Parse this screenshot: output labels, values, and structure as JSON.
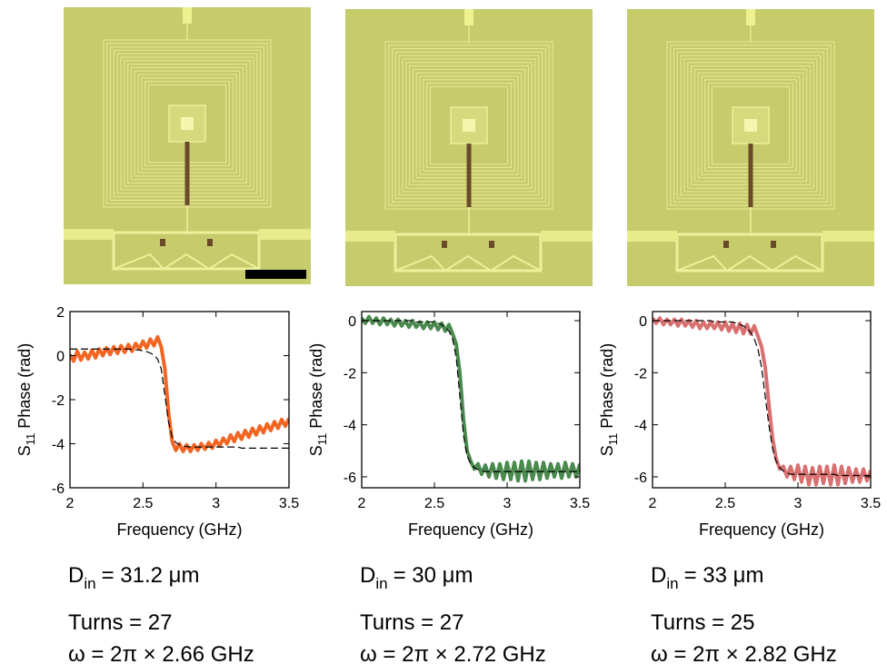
{
  "chart_data": [
    {
      "type": "line",
      "xlabel": "Frequency (GHz)",
      "ylabel": [
        "S",
        "11",
        "Phase (rad)"
      ],
      "xlim": [
        2,
        3.5
      ],
      "ylim": [
        -6,
        2
      ],
      "xticks": [
        2,
        2.5,
        3,
        3.5
      ],
      "yticks": [
        2,
        0,
        -2,
        -4,
        -6
      ],
      "annotations": [
        [
          "D",
          "in",
          "= 31.2 μm"
        ],
        "Turns = 27",
        "ω = 2π × 2.66 GHz"
      ],
      "x": [
        2,
        2.025,
        2.05,
        2.075,
        2.1,
        2.125,
        2.15,
        2.175,
        2.2,
        2.225,
        2.25,
        2.275,
        2.3,
        2.325,
        2.35,
        2.375,
        2.4,
        2.425,
        2.45,
        2.475,
        2.5,
        2.525,
        2.55,
        2.575,
        2.6,
        2.625,
        2.65,
        2.675,
        2.7,
        2.725,
        2.75,
        2.775,
        2.8,
        2.825,
        2.85,
        2.875,
        2.9,
        2.925,
        2.95,
        2.975,
        3,
        3.025,
        3.05,
        3.075,
        3.1,
        3.125,
        3.15,
        3.175,
        3.2,
        3.225,
        3.25,
        3.275,
        3.3,
        3.325,
        3.35,
        3.375,
        3.4,
        3.425,
        3.45,
        3.475,
        3.5
      ],
      "series": [
        {
          "color": "#f26522",
          "style": "solid",
          "values": [
            0.05,
            -0.25,
            0.2,
            -0.2,
            0.15,
            -0.15,
            0.25,
            -0.1,
            0.3,
            0,
            0.35,
            0.05,
            0.4,
            0.1,
            0.45,
            0.15,
            0.5,
            0.2,
            0.55,
            0.3,
            0.65,
            0.35,
            0.75,
            0.45,
            0.85,
            0.4,
            -0.6,
            -2.6,
            -3.9,
            -4.3,
            -4,
            -4.35,
            -4.05,
            -4.35,
            -4.05,
            -4.3,
            -4,
            -4.25,
            -3.95,
            -4.2,
            -3.85,
            -4.1,
            -3.75,
            -4,
            -3.6,
            -3.9,
            -3.5,
            -3.8,
            -3.4,
            -3.7,
            -3.3,
            -3.6,
            -3.2,
            -3.5,
            -3.1,
            -3.4,
            -3,
            -3.3,
            -2.9,
            -3.2,
            -2.85
          ]
        },
        {
          "color": "#000000",
          "style": "dashed",
          "values": [
            0.3,
            0.3,
            0.3,
            0.3,
            0.3,
            0.3,
            0.3,
            0.3,
            0.3,
            0.3,
            0.3,
            0.3,
            0.3,
            0.3,
            0.3,
            0.3,
            0.3,
            0.28,
            0.27,
            0.25,
            0.22,
            0.18,
            0.12,
            0.02,
            -0.15,
            -0.6,
            -1.8,
            -3,
            -3.7,
            -3.95,
            -4.05,
            -4.1,
            -4.13,
            -4.15,
            -4.15,
            -4.15,
            -4.15,
            -4.15,
            -4.15,
            -4.15,
            -4.15,
            -4.15,
            -4.15,
            -4.15,
            -4.15,
            -4.15,
            -4.15,
            -4.2,
            -4.2,
            -4.2,
            -4.2,
            -4.2,
            -4.2,
            -4.2,
            -4.2,
            -4.2,
            -4.2,
            -4.2,
            -4.2,
            -4.2,
            -4.2
          ]
        }
      ]
    },
    {
      "type": "line",
      "xlabel": "Frequency (GHz)",
      "ylabel": [
        "S",
        "11",
        "Phase (rad)"
      ],
      "xlim": [
        2,
        3.5
      ],
      "ylim": [
        -6.42,
        0.35
      ],
      "xticks": [
        2,
        2.5,
        3,
        3.5
      ],
      "yticks": [
        0,
        -2,
        -4,
        -6
      ],
      "annotations": [
        [
          "D",
          "in",
          "= 30 μm"
        ],
        "Turns = 27",
        "ω = 2π × 2.72 GHz"
      ],
      "x": [
        2,
        2.025,
        2.05,
        2.075,
        2.1,
        2.125,
        2.15,
        2.175,
        2.2,
        2.225,
        2.25,
        2.275,
        2.3,
        2.325,
        2.35,
        2.375,
        2.4,
        2.425,
        2.45,
        2.475,
        2.5,
        2.525,
        2.55,
        2.575,
        2.6,
        2.625,
        2.65,
        2.675,
        2.7,
        2.725,
        2.75,
        2.775,
        2.8,
        2.825,
        2.85,
        2.875,
        2.9,
        2.925,
        2.95,
        2.975,
        3,
        3.025,
        3.05,
        3.075,
        3.1,
        3.125,
        3.15,
        3.175,
        3.2,
        3.225,
        3.25,
        3.275,
        3.3,
        3.325,
        3.35,
        3.375,
        3.4,
        3.425,
        3.45,
        3.475,
        3.5
      ],
      "series": [
        {
          "color": "#4a8a4e",
          "style": "solid",
          "values": [
            0.1,
            -0.1,
            0.15,
            -0.1,
            0.1,
            -0.15,
            0.1,
            -0.15,
            0.05,
            -0.2,
            0.05,
            -0.2,
            0,
            -0.25,
            0,
            -0.25,
            -0.05,
            -0.3,
            -0.05,
            -0.3,
            -0.05,
            -0.35,
            -0.1,
            -0.4,
            -0.15,
            -0.5,
            -0.9,
            -2,
            -3.8,
            -5,
            -5.4,
            -5.7,
            -5.5,
            -5.9,
            -5.55,
            -6,
            -5.5,
            -6.05,
            -5.5,
            -6.1,
            -5.45,
            -6.1,
            -5.45,
            -6.15,
            -5.4,
            -6.15,
            -5.4,
            -6.1,
            -5.45,
            -6.1,
            -5.45,
            -6.05,
            -5.5,
            -6,
            -5.5,
            -6.05,
            -5.45,
            -6,
            -5.5,
            -6,
            -5.5
          ]
        },
        {
          "color": "#000000",
          "style": "dashed",
          "values": [
            0,
            0,
            0,
            0,
            0,
            0,
            0,
            0,
            0,
            0,
            0,
            0,
            0,
            0,
            0,
            -0.05,
            -0.05,
            -0.05,
            -0.05,
            -0.05,
            -0.05,
            -0.1,
            -0.15,
            -0.25,
            -0.4,
            -0.7,
            -1.4,
            -2.9,
            -4.4,
            -5.2,
            -5.5,
            -5.65,
            -5.72,
            -5.76,
            -5.8,
            -5.8,
            -5.8,
            -5.8,
            -5.8,
            -5.8,
            -5.8,
            -5.8,
            -5.8,
            -5.8,
            -5.8,
            -5.8,
            -5.8,
            -5.8,
            -5.8,
            -5.8,
            -5.8,
            -5.8,
            -5.8,
            -5.8,
            -5.8,
            -5.8,
            -5.8,
            -5.8,
            -5.8,
            -5.8,
            -5.8
          ]
        }
      ]
    },
    {
      "type": "line",
      "xlabel": "Frequency (GHz)",
      "ylabel": [
        "S",
        "11",
        "Phase (rad)"
      ],
      "xlim": [
        2,
        3.5
      ],
      "ylim": [
        -6.42,
        0.35
      ],
      "xticks": [
        2,
        2.5,
        3,
        3.5
      ],
      "yticks": [
        0,
        -2,
        -4,
        -6
      ],
      "annotations": [
        [
          "D",
          "in",
          "= 33 μm"
        ],
        "Turns = 25",
        "ω = 2π × 2.82 GHz"
      ],
      "x": [
        2,
        2.025,
        2.05,
        2.075,
        2.1,
        2.125,
        2.15,
        2.175,
        2.2,
        2.225,
        2.25,
        2.275,
        2.3,
        2.325,
        2.35,
        2.375,
        2.4,
        2.425,
        2.45,
        2.475,
        2.5,
        2.525,
        2.55,
        2.575,
        2.6,
        2.625,
        2.65,
        2.675,
        2.7,
        2.725,
        2.75,
        2.775,
        2.8,
        2.825,
        2.85,
        2.875,
        2.9,
        2.925,
        2.95,
        2.975,
        3,
        3.025,
        3.05,
        3.075,
        3.1,
        3.125,
        3.15,
        3.175,
        3.2,
        3.225,
        3.25,
        3.275,
        3.3,
        3.325,
        3.35,
        3.375,
        3.4,
        3.425,
        3.45,
        3.475,
        3.5
      ],
      "series": [
        {
          "color": "#d97070",
          "style": "solid",
          "values": [
            0.1,
            -0.1,
            0.1,
            -0.15,
            0.05,
            -0.15,
            0.05,
            -0.2,
            0.05,
            -0.2,
            0,
            -0.25,
            0,
            -0.3,
            -0.05,
            -0.3,
            -0.05,
            -0.3,
            -0.05,
            -0.35,
            -0.05,
            -0.4,
            -0.1,
            -0.45,
            -0.1,
            -0.5,
            -0.15,
            -0.5,
            -0.2,
            -0.6,
            -1,
            -1.8,
            -3.2,
            -4.5,
            -5.3,
            -5.7,
            -5.6,
            -6,
            -5.6,
            -6.1,
            -5.55,
            -6.2,
            -5.6,
            -6.3,
            -5.65,
            -6.3,
            -5.6,
            -6.25,
            -5.6,
            -6.3,
            -5.55,
            -6.3,
            -5.6,
            -6.25,
            -5.65,
            -6.2,
            -5.7,
            -6.2,
            -5.7,
            -6.15,
            -5.75
          ]
        },
        {
          "color": "#000000",
          "style": "dashed",
          "values": [
            0,
            0,
            0,
            0,
            0,
            0,
            0,
            0,
            0,
            0,
            0,
            0,
            0,
            0,
            0,
            0,
            0,
            -0.05,
            -0.05,
            -0.05,
            -0.05,
            -0.05,
            -0.05,
            -0.1,
            -0.15,
            -0.2,
            -0.3,
            -0.45,
            -0.7,
            -1.1,
            -1.8,
            -2.9,
            -4,
            -4.9,
            -5.4,
            -5.65,
            -5.78,
            -5.85,
            -5.9,
            -5.9,
            -5.9,
            -5.9,
            -5.9,
            -5.9,
            -5.9,
            -5.9,
            -5.9,
            -5.9,
            -5.9,
            -5.9,
            -5.9,
            -5.95,
            -5.95,
            -5.95,
            -5.95,
            -5.95,
            -5.95,
            -5.95,
            -5.95,
            -5.95,
            -5.95
          ]
        }
      ]
    }
  ]
}
